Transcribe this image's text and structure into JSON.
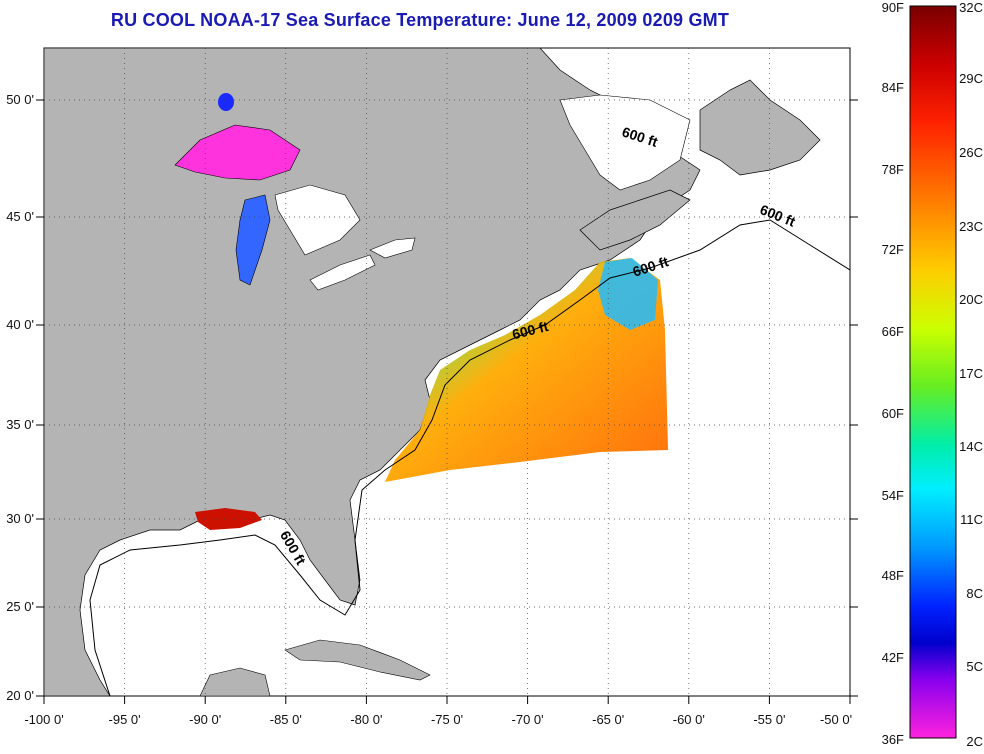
{
  "title": "RU COOL  NOAA-17  Sea Surface Temperature:  June 12, 2009 0209 GMT",
  "map": {
    "lon_range": [
      -100,
      -50
    ],
    "lat_range": [
      20,
      52.5
    ],
    "x_ticks": [
      "-100 0'",
      "-95 0'",
      "-90 0'",
      "-85 0'",
      "-80 0'",
      "-75 0'",
      "-70 0'",
      "-65 0'",
      "-60 0'",
      "-55 0'",
      "-50 0'"
    ],
    "y_ticks": [
      "20 0'",
      "25 0'",
      "30 0'",
      "35 0'",
      "40 0'",
      "45 0'",
      "50 0'"
    ],
    "grid": "dotted",
    "land_color": "#b4b4b4",
    "ocean_color": "#ffffff"
  },
  "contour_labels": [
    "600 ft",
    "600 ft",
    "600 ft",
    "600 ft",
    "600 ft"
  ],
  "colorbar": {
    "left_labels": [
      "90F",
      "84F",
      "78F",
      "72F",
      "66F",
      "60F",
      "54F",
      "48F",
      "42F",
      "36F"
    ],
    "right_labels": [
      "32C",
      "29C",
      "26C",
      "23C",
      "20C",
      "17C",
      "14C",
      "11C",
      "8C",
      "5C",
      "2C"
    ],
    "colors_top_to_bottom": [
      "#8a0000",
      "#ff0000",
      "#ff6600",
      "#ffaa00",
      "#ffff00",
      "#88ee00",
      "#00ee99",
      "#00eeee",
      "#0077ff",
      "#0000dd",
      "#9900ff",
      "#ff22dd"
    ]
  }
}
